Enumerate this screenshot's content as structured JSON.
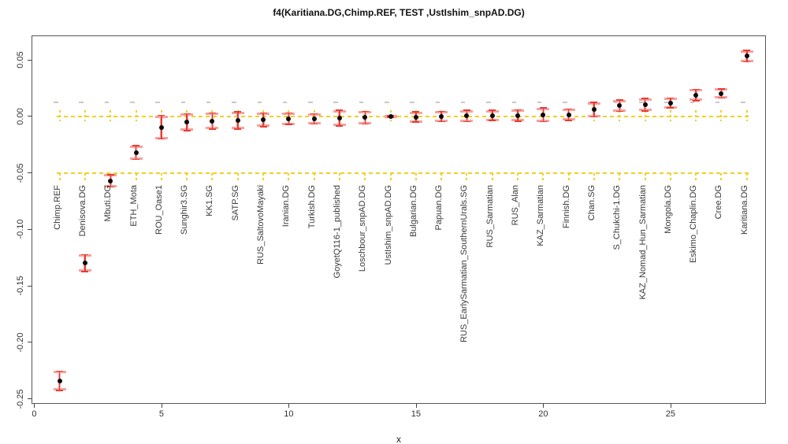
{
  "chart_data": {
    "type": "scatter",
    "title": "f4(Karitiana.DG,Chimp.REF, TEST ,UstIshim_snpAD.DG)",
    "xlabel": "x",
    "ylabel": "",
    "xlim": [
      -0.105,
      28.75
    ],
    "ylim": [
      -0.2545,
      0.0718
    ],
    "grid": false,
    "x_ticks": [
      0,
      5,
      10,
      15,
      20,
      25
    ],
    "x_tick_labels": [
      "0",
      "5",
      "10",
      "15",
      "20",
      "25"
    ],
    "y_ticks": [
      0.05,
      0.0,
      -0.05,
      -0.1,
      -0.15,
      -0.2,
      -0.25
    ],
    "y_tick_labels": [
      "0.05",
      "0.00",
      "-0.05",
      "-0.10",
      "-0.15",
      "-0.20",
      "-0.25"
    ],
    "reference_lines_y": [
      0.0,
      -0.05
    ],
    "reference_line_x_range": [
      0.88,
      28.1
    ],
    "grey_marker_row_y": 0.0125,
    "label_anchor_y": -0.0607,
    "colors": {
      "error_bar_red": "#e63c35",
      "error_bar_pink": "#f7a19c",
      "reference_yellow": "#efd026",
      "grey_marker": "#c8c8c8",
      "point_black": "#0a0a0a"
    },
    "points": [
      {
        "x": 1,
        "label": "Chimp.REF",
        "value": -0.234,
        "se": 0.0085
      },
      {
        "x": 2,
        "label": "Denisova.DG",
        "value": -0.13,
        "se": 0.0075
      },
      {
        "x": 3,
        "label": "Mbuti.DG",
        "value": -0.057,
        "se": 0.0055
      },
      {
        "x": 4,
        "label": "ETH_Mota",
        "value": -0.032,
        "se": 0.006
      },
      {
        "x": 5,
        "label": "ROU_Oase1",
        "value": -0.0095,
        "se": 0.0105
      },
      {
        "x": 6,
        "label": "Sunghir3.SG",
        "value": -0.005,
        "se": 0.0075
      },
      {
        "x": 7,
        "label": "KK1.SG",
        "value": -0.004,
        "se": 0.007
      },
      {
        "x": 8,
        "label": "SATP.SG",
        "value": -0.0035,
        "se": 0.0075
      },
      {
        "x": 9,
        "label": "RUS_SaltovoMayaki",
        "value": -0.003,
        "se": 0.006
      },
      {
        "x": 10,
        "label": "Iranian.DG",
        "value": -0.002,
        "se": 0.005
      },
      {
        "x": 11,
        "label": "Turkish.DG",
        "value": -0.002,
        "se": 0.0045
      },
      {
        "x": 12,
        "label": "GoyetQ116-1_published",
        "value": -0.0015,
        "se": 0.007
      },
      {
        "x": 13,
        "label": "Loschbour_snpAD.DG",
        "value": -0.001,
        "se": 0.0055
      },
      {
        "x": 14,
        "label": "UstIshim_snpAD.DG",
        "value": 0.0,
        "se": 0.0008
      },
      {
        "x": 15,
        "label": "Bulgarian.DG",
        "value": -0.0005,
        "se": 0.0045
      },
      {
        "x": 16,
        "label": "Papuan.DG",
        "value": 0.0,
        "se": 0.0045
      },
      {
        "x": 17,
        "label": "RUS_EarlySarmatian_SouthernUrals.SG",
        "value": 0.0005,
        "se": 0.005
      },
      {
        "x": 18,
        "label": "RUS_Sarmatian",
        "value": 0.001,
        "se": 0.0045
      },
      {
        "x": 19,
        "label": "RUS_Alan",
        "value": 0.001,
        "se": 0.005
      },
      {
        "x": 20,
        "label": "KAZ_Sarmatian",
        "value": 0.0015,
        "se": 0.006
      },
      {
        "x": 21,
        "label": "Finnish.DG",
        "value": 0.0015,
        "se": 0.005
      },
      {
        "x": 22,
        "label": "Chan.SG",
        "value": 0.006,
        "se": 0.0065
      },
      {
        "x": 23,
        "label": "S_Chukchi-1.DG",
        "value": 0.0095,
        "se": 0.005
      },
      {
        "x": 24,
        "label": "KAZ_Nomad_Hun_Sarmatian",
        "value": 0.0105,
        "se": 0.0055
      },
      {
        "x": 25,
        "label": "Mongola.DG",
        "value": 0.012,
        "se": 0.0045
      },
      {
        "x": 26,
        "label": "Eskimo_Chaplin.DG",
        "value": 0.019,
        "se": 0.005
      },
      {
        "x": 27,
        "label": "Cree.DG",
        "value": 0.0205,
        "se": 0.004
      },
      {
        "x": 28,
        "label": "Karitiana.DG",
        "value": 0.0535,
        "se": 0.005
      }
    ]
  }
}
